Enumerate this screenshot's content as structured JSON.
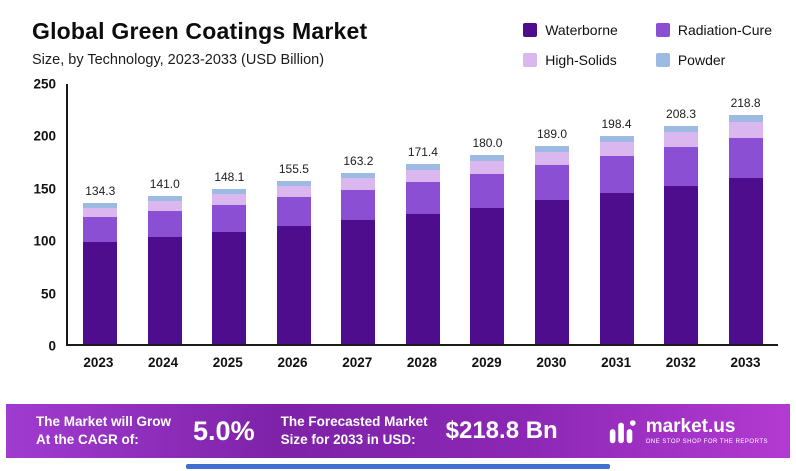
{
  "title": "Global Green Coatings Market",
  "subtitle": "Size, by Technology, 2023-2033 (USD Billion)",
  "chart_data": {
    "type": "bar",
    "stacked": true,
    "title": "Global Green Coatings Market",
    "subtitle": "Size, by Technology, 2023-2033 (USD Billion)",
    "unit": "USD Billion",
    "categories": [
      "2023",
      "2024",
      "2025",
      "2026",
      "2027",
      "2028",
      "2029",
      "2030",
      "2031",
      "2032",
      "2033"
    ],
    "totals": [
      "134.3",
      "141.0",
      "148.1",
      "155.5",
      "163.2",
      "171.4",
      "180.0",
      "189.0",
      "198.4",
      "208.3",
      "218.8"
    ],
    "series": [
      {
        "name": "Waterborne",
        "color": "#4d0d8c",
        "values": [
          97.0,
          102.0,
          107.1,
          112.5,
          118.0,
          124.0,
          130.0,
          137.0,
          144.0,
          151.0,
          158.0
        ]
      },
      {
        "name": "Radiation-Cure",
        "color": "#8a4fd3",
        "values": [
          24.0,
          25.0,
          26.0,
          27.5,
          29.0,
          30.5,
          32.0,
          33.5,
          35.0,
          37.0,
          39.0
        ]
      },
      {
        "name": "High-Solids",
        "color": "#dab7ef",
        "values": [
          9.0,
          9.5,
          10.0,
          10.5,
          11.0,
          11.5,
          12.3,
          12.7,
          13.4,
          14.0,
          15.0
        ]
      },
      {
        "name": "Powder",
        "color": "#9dbbe2",
        "values": [
          4.3,
          4.5,
          5.0,
          5.0,
          5.2,
          5.4,
          5.7,
          5.8,
          6.0,
          6.3,
          6.8
        ]
      }
    ],
    "ylim": [
      0,
      250
    ],
    "yticks": [
      0,
      50,
      100,
      150,
      200,
      250
    ],
    "grid": false,
    "legend_position": "top-right"
  },
  "legend": [
    {
      "label": "Waterborne",
      "color": "#4d0d8c"
    },
    {
      "label": "Radiation-Cure",
      "color": "#8a4fd3"
    },
    {
      "label": "High-Solids",
      "color": "#dab7ef"
    },
    {
      "label": "Powder",
      "color": "#9dbbe2"
    }
  ],
  "banner": {
    "cagr_label_line1": "The Market will Grow",
    "cagr_label_line2": "At the CAGR of:",
    "cagr_value": "5.0%",
    "forecast_label_line1": "The Forecasted Market",
    "forecast_label_line2": "Size for 2033 in USD:",
    "forecast_value": "$218.8 Bn",
    "brand_name": "market.us",
    "brand_tagline": "ONE STOP SHOP FOR THE REPORTS"
  },
  "colors": {
    "banner_gradient_start": "#a13bd0",
    "banner_gradient_end": "#b33ad2",
    "axis": "#1a1a1a",
    "bottom_line": "#3f6fd1"
  }
}
